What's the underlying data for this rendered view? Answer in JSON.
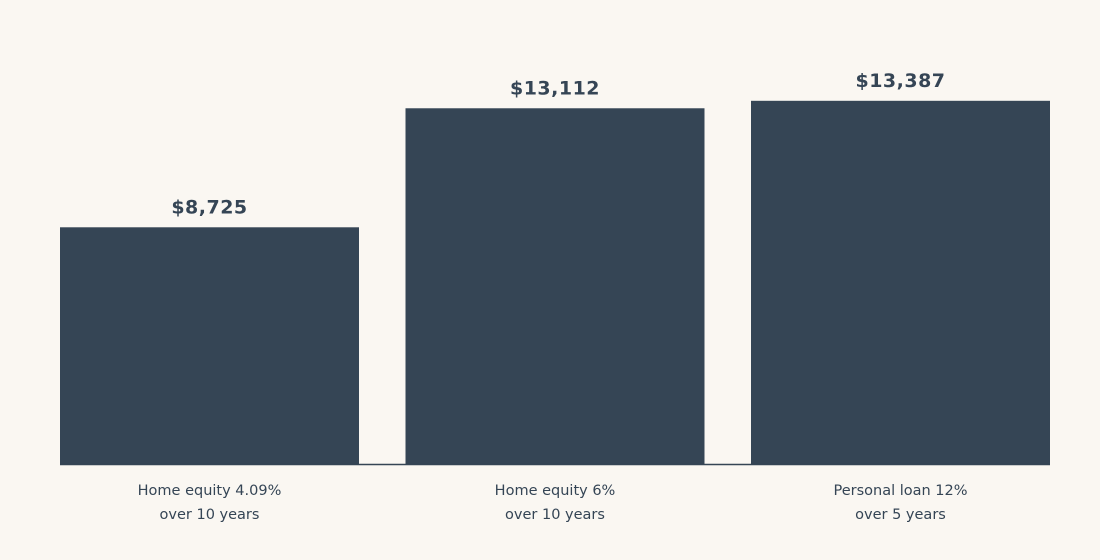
{
  "chart_data": {
    "type": "bar",
    "categories": [
      [
        "Home equity 4.09%",
        "over 10 years"
      ],
      [
        "Home equity 6%",
        "over 10 years"
      ],
      [
        "Personal loan 12%",
        "over 5 years"
      ]
    ],
    "values": [
      8725,
      13112,
      13387
    ],
    "data_labels": [
      "$8,725",
      "$13,112",
      "$13,387"
    ],
    "title": "",
    "xlabel": "",
    "ylabel": "",
    "ylim": [
      0,
      15000
    ],
    "grid": false,
    "legend": "none"
  },
  "colors": {
    "background": "#faf7f2",
    "bar": "#354555",
    "text": "#354555",
    "baseline": "#354555"
  }
}
